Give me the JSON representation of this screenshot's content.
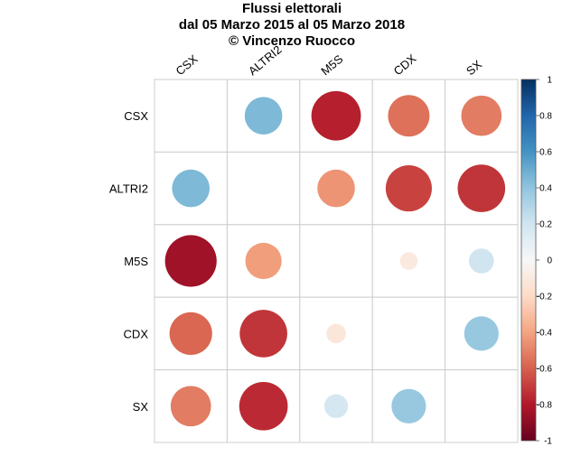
{
  "chart_data": {
    "type": "heatmap",
    "subtype": "correlation-circles",
    "title_lines": [
      "Flussi elettorali",
      "dal 05 Marzo 2015 al 05 Marzo 2018",
      "© Vincenzo Ruocco"
    ],
    "rows": [
      "CSX",
      "ALTRI2",
      "M5S",
      "CDX",
      "SX"
    ],
    "columns": [
      "CSX",
      "ALTRI2",
      "M5S",
      "CDX",
      "SX"
    ],
    "matrix": [
      [
        null,
        0.45,
        -0.78,
        -0.55,
        -0.52
      ],
      [
        0.45,
        null,
        -0.45,
        -0.68,
        -0.72
      ],
      [
        -0.85,
        -0.42,
        null,
        -0.1,
        0.2
      ],
      [
        -0.58,
        -0.72,
        -0.12,
        null,
        0.38
      ],
      [
        -0.52,
        -0.75,
        0.18,
        0.38,
        null
      ]
    ],
    "colorbar": {
      "range": [
        -1,
        1
      ],
      "ticks": [
        "1",
        "0.8",
        "0.6",
        "0.4",
        "0.2",
        "0",
        "-0.2",
        "-0.4",
        "-0.6",
        "-0.8",
        "-1"
      ],
      "colors_high_to_low": [
        "#053061",
        "#2166ac",
        "#4393c3",
        "#92c5de",
        "#d1e5f0",
        "#f7f7f7",
        "#fddbc7",
        "#f4a582",
        "#d6604d",
        "#b2182b",
        "#67001f"
      ]
    },
    "grid": true,
    "legend": "right"
  }
}
